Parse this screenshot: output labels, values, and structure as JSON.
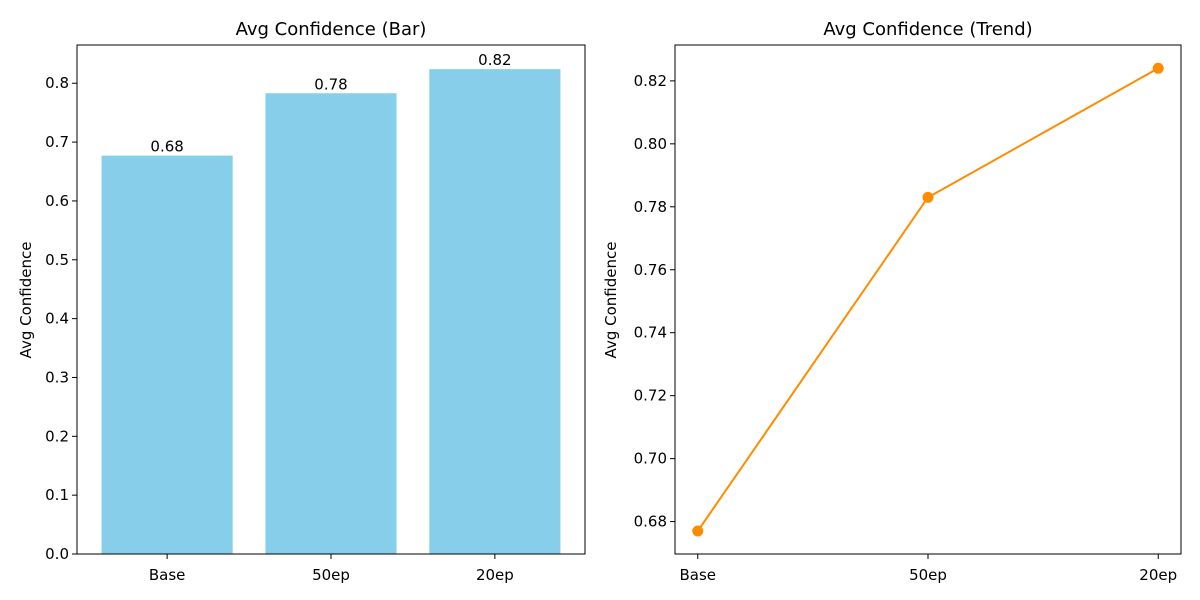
{
  "chart_data": [
    {
      "type": "bar",
      "title": "Avg Confidence (Bar)",
      "xlabel": "",
      "ylabel": "Avg Confidence",
      "categories": [
        "Base",
        "50ep",
        "20ep"
      ],
      "values": [
        0.677,
        0.783,
        0.824
      ],
      "value_labels": [
        "0.68",
        "0.78",
        "0.82"
      ],
      "ylim": [
        0,
        0.865
      ],
      "yticks": [
        "0.0",
        "0.1",
        "0.2",
        "0.3",
        "0.4",
        "0.5",
        "0.6",
        "0.7",
        "0.8"
      ],
      "color": "#87ceeb",
      "grid": false
    },
    {
      "type": "line",
      "title": "Avg Confidence (Trend)",
      "xlabel": "",
      "ylabel": "Avg Confidence",
      "categories": [
        "Base",
        "50ep",
        "20ep"
      ],
      "values": [
        0.677,
        0.783,
        0.824
      ],
      "ylim": [
        0.6697,
        0.8314
      ],
      "yticks": [
        "0.68",
        "0.70",
        "0.72",
        "0.74",
        "0.76",
        "0.78",
        "0.80",
        "0.82"
      ],
      "color": "#ff8c00",
      "marker": "circle",
      "grid": false
    }
  ]
}
